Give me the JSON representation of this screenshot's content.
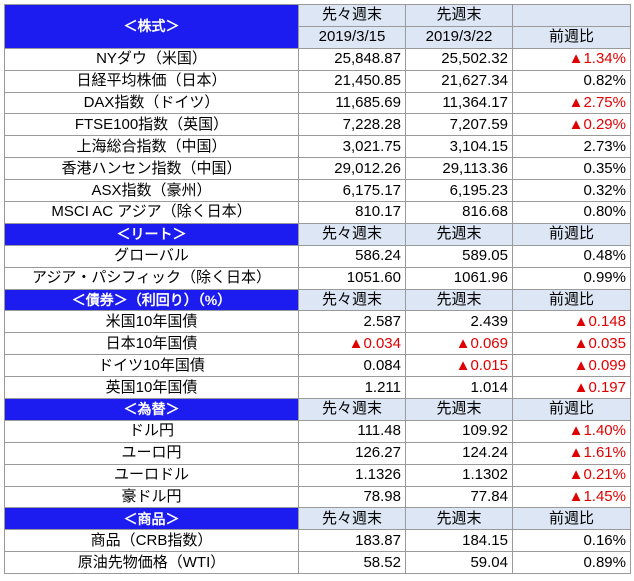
{
  "sections": [
    {
      "title": "＜株式＞",
      "columns": [
        {
          "label": "先々週末",
          "date": "2019/3/15"
        },
        {
          "label": "先週末",
          "date": "2019/3/22"
        },
        {
          "label": "前週比"
        }
      ],
      "rows": [
        [
          "NYダウ（米国）",
          "25,848.87",
          "25,502.32",
          "▲1.34%"
        ],
        [
          "日経平均株価（日本）",
          "21,450.85",
          "21,627.34",
          "0.82%"
        ],
        [
          "DAX指数（ドイツ）",
          "11,685.69",
          "11,364.17",
          "▲2.75%"
        ],
        [
          "FTSE100指数（英国）",
          "7,228.28",
          "7,207.59",
          "▲0.29%"
        ],
        [
          "上海総合指数（中国）",
          "3,021.75",
          "3,104.15",
          "2.73%"
        ],
        [
          "香港ハンセン指数（中国）",
          "29,012.26",
          "29,113.36",
          "0.35%"
        ],
        [
          "ASX指数（豪州）",
          "6,175.17",
          "6,195.23",
          "0.32%"
        ],
        [
          "MSCI AC アジア（除く日本）",
          "810.17",
          "816.68",
          "0.80%"
        ]
      ]
    },
    {
      "title": "＜リート＞",
      "columns": [
        {
          "label": "先々週末"
        },
        {
          "label": "先週末"
        },
        {
          "label": "前週比"
        }
      ],
      "rows": [
        [
          "グローバル",
          "586.24",
          "589.05",
          "0.48%"
        ],
        [
          "アジア・パシフィック（除く日本）",
          "1051.60",
          "1061.96",
          "0.99%"
        ]
      ]
    },
    {
      "title": "＜債券＞（利回り）（%）",
      "columns": [
        {
          "label": "先々週末"
        },
        {
          "label": "先週末"
        },
        {
          "label": "前週比"
        }
      ],
      "rows": [
        [
          "米国10年国債",
          "2.587",
          "2.439",
          "▲0.148"
        ],
        [
          "日本10年国債",
          "▲0.034",
          "▲0.069",
          "▲0.035"
        ],
        [
          "ドイツ10年国債",
          "0.084",
          "▲0.015",
          "▲0.099"
        ],
        [
          "英国10年国債",
          "1.211",
          "1.014",
          "▲0.197"
        ]
      ]
    },
    {
      "title": "＜為替＞",
      "columns": [
        {
          "label": "先々週末"
        },
        {
          "label": "先週末"
        },
        {
          "label": "前週比"
        }
      ],
      "rows": [
        [
          "ドル円",
          "111.48",
          "109.92",
          "▲1.40%"
        ],
        [
          "ユーロ円",
          "126.27",
          "124.24",
          "▲1.61%"
        ],
        [
          "ユーロドル",
          "1.1326",
          "1.1302",
          "▲0.21%"
        ],
        [
          "豪ドル円",
          "78.98",
          "77.84",
          "▲1.45%"
        ]
      ]
    },
    {
      "title": "＜商品＞",
      "columns": [
        {
          "label": "先々週末"
        },
        {
          "label": "先週末"
        },
        {
          "label": "前週比"
        }
      ],
      "rows": [
        [
          "商品（CRB指数）",
          "183.87",
          "184.15",
          "0.16%"
        ],
        [
          "原油先物価格（WTI）",
          "58.52",
          "59.04",
          "0.89%"
        ]
      ]
    }
  ]
}
